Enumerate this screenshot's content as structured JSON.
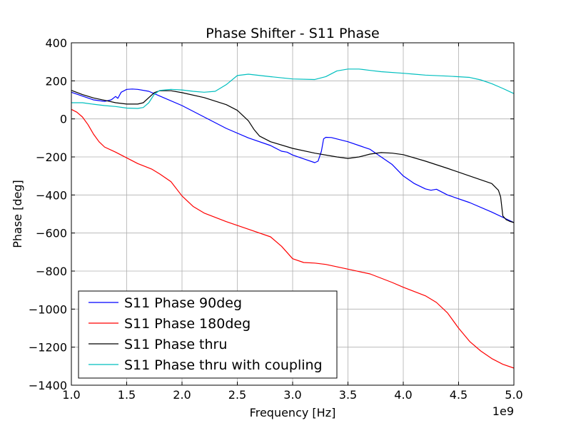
{
  "chart_data": {
    "type": "line",
    "title": "Phase Shifter - S11 Phase",
    "xlabel": "Frequency [Hz]",
    "ylabel": "Phase [deg]",
    "x_offset_label": "1e9",
    "xlim": [
      1.0,
      5.0
    ],
    "ylim": [
      -1400,
      400
    ],
    "x_ticks": [
      1.0,
      1.5,
      2.0,
      2.5,
      3.0,
      3.5,
      4.0,
      4.5,
      5.0
    ],
    "x_tick_labels": [
      "1.0",
      "1.5",
      "2.0",
      "2.5",
      "3.0",
      "3.5",
      "4.0",
      "4.5",
      "5.0"
    ],
    "y_ticks": [
      400,
      200,
      0,
      -200,
      -400,
      -600,
      -800,
      -1000,
      -1200,
      -1400
    ],
    "y_tick_labels": [
      "400",
      "200",
      "0",
      "−200",
      "−400",
      "−600",
      "−800",
      "−1000",
      "−1200",
      "−1400"
    ],
    "grid": true,
    "legend_position": "lower-left",
    "series": [
      {
        "name": "S11 Phase 90deg",
        "color": "#0000ff",
        "points": [
          [
            1.0,
            140
          ],
          [
            1.1,
            120
          ],
          [
            1.2,
            100
          ],
          [
            1.3,
            92
          ],
          [
            1.36,
            100
          ],
          [
            1.4,
            118
          ],
          [
            1.42,
            108
          ],
          [
            1.45,
            140
          ],
          [
            1.5,
            155
          ],
          [
            1.55,
            157
          ],
          [
            1.6,
            155
          ],
          [
            1.7,
            145
          ],
          [
            1.8,
            120
          ],
          [
            2.0,
            70
          ],
          [
            2.2,
            10
          ],
          [
            2.4,
            -50
          ],
          [
            2.6,
            -100
          ],
          [
            2.8,
            -140
          ],
          [
            2.9,
            -170
          ],
          [
            2.95,
            -175
          ],
          [
            3.0,
            -190
          ],
          [
            3.1,
            -210
          ],
          [
            3.2,
            -230
          ],
          [
            3.23,
            -222
          ],
          [
            3.26,
            -170
          ],
          [
            3.28,
            -105
          ],
          [
            3.3,
            -97
          ],
          [
            3.35,
            -98
          ],
          [
            3.5,
            -120
          ],
          [
            3.7,
            -160
          ],
          [
            3.9,
            -240
          ],
          [
            4.0,
            -300
          ],
          [
            4.1,
            -340
          ],
          [
            4.2,
            -368
          ],
          [
            4.25,
            -375
          ],
          [
            4.3,
            -370
          ],
          [
            4.4,
            -400
          ],
          [
            4.6,
            -440
          ],
          [
            4.8,
            -490
          ],
          [
            5.0,
            -545
          ]
        ]
      },
      {
        "name": "S11 Phase 180deg",
        "color": "#ff0000",
        "points": [
          [
            1.0,
            50
          ],
          [
            1.05,
            35
          ],
          [
            1.1,
            10
          ],
          [
            1.15,
            -30
          ],
          [
            1.2,
            -80
          ],
          [
            1.25,
            -120
          ],
          [
            1.3,
            -148
          ],
          [
            1.4,
            -175
          ],
          [
            1.5,
            -205
          ],
          [
            1.6,
            -235
          ],
          [
            1.7,
            -258
          ],
          [
            1.73,
            -265
          ],
          [
            1.8,
            -290
          ],
          [
            1.9,
            -330
          ],
          [
            2.0,
            -405
          ],
          [
            2.1,
            -460
          ],
          [
            2.2,
            -495
          ],
          [
            2.4,
            -540
          ],
          [
            2.6,
            -580
          ],
          [
            2.8,
            -620
          ],
          [
            2.9,
            -670
          ],
          [
            3.0,
            -735
          ],
          [
            3.1,
            -755
          ],
          [
            3.2,
            -758
          ],
          [
            3.3,
            -765
          ],
          [
            3.5,
            -790
          ],
          [
            3.7,
            -815
          ],
          [
            3.9,
            -860
          ],
          [
            4.0,
            -885
          ],
          [
            4.2,
            -930
          ],
          [
            4.3,
            -965
          ],
          [
            4.4,
            -1020
          ],
          [
            4.5,
            -1100
          ],
          [
            4.6,
            -1170
          ],
          [
            4.7,
            -1220
          ],
          [
            4.8,
            -1260
          ],
          [
            4.9,
            -1290
          ],
          [
            5.0,
            -1310
          ]
        ]
      },
      {
        "name": "S11 Phase thru",
        "color": "#000000",
        "points": [
          [
            1.0,
            150
          ],
          [
            1.1,
            128
          ],
          [
            1.2,
            110
          ],
          [
            1.3,
            98
          ],
          [
            1.4,
            85
          ],
          [
            1.5,
            78
          ],
          [
            1.6,
            78
          ],
          [
            1.65,
            85
          ],
          [
            1.7,
            112
          ],
          [
            1.75,
            138
          ],
          [
            1.8,
            148
          ],
          [
            1.9,
            148
          ],
          [
            2.0,
            138
          ],
          [
            2.2,
            112
          ],
          [
            2.4,
            75
          ],
          [
            2.5,
            45
          ],
          [
            2.6,
            -10
          ],
          [
            2.65,
            -55
          ],
          [
            2.7,
            -90
          ],
          [
            2.8,
            -120
          ],
          [
            3.0,
            -155
          ],
          [
            3.2,
            -180
          ],
          [
            3.4,
            -200
          ],
          [
            3.5,
            -208
          ],
          [
            3.6,
            -200
          ],
          [
            3.7,
            -185
          ],
          [
            3.8,
            -177
          ],
          [
            3.9,
            -180
          ],
          [
            4.0,
            -188
          ],
          [
            4.2,
            -222
          ],
          [
            4.4,
            -260
          ],
          [
            4.6,
            -300
          ],
          [
            4.8,
            -340
          ],
          [
            4.86,
            -375
          ],
          [
            4.88,
            -410
          ],
          [
            4.9,
            -510
          ],
          [
            4.93,
            -530
          ],
          [
            4.96,
            -538
          ],
          [
            5.0,
            -545
          ]
        ]
      },
      {
        "name": "S11 Phase thru with coupling",
        "color": "#00bfbf",
        "points": [
          [
            1.0,
            85
          ],
          [
            1.1,
            85
          ],
          [
            1.2,
            77
          ],
          [
            1.3,
            70
          ],
          [
            1.4,
            65
          ],
          [
            1.5,
            57
          ],
          [
            1.6,
            55
          ],
          [
            1.65,
            60
          ],
          [
            1.7,
            85
          ],
          [
            1.75,
            130
          ],
          [
            1.8,
            150
          ],
          [
            1.9,
            155
          ],
          [
            2.0,
            152
          ],
          [
            2.1,
            145
          ],
          [
            2.2,
            140
          ],
          [
            2.3,
            145
          ],
          [
            2.4,
            180
          ],
          [
            2.5,
            228
          ],
          [
            2.6,
            235
          ],
          [
            2.8,
            222
          ],
          [
            3.0,
            210
          ],
          [
            3.2,
            207
          ],
          [
            3.3,
            222
          ],
          [
            3.4,
            252
          ],
          [
            3.5,
            262
          ],
          [
            3.6,
            262
          ],
          [
            3.7,
            255
          ],
          [
            3.8,
            248
          ],
          [
            4.0,
            240
          ],
          [
            4.1,
            235
          ],
          [
            4.2,
            230
          ],
          [
            4.4,
            225
          ],
          [
            4.6,
            218
          ],
          [
            4.7,
            205
          ],
          [
            4.8,
            185
          ],
          [
            4.9,
            160
          ],
          [
            5.0,
            133
          ]
        ]
      }
    ]
  }
}
